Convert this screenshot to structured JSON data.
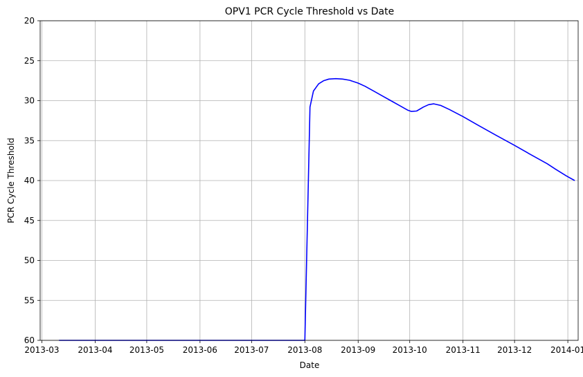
{
  "chart_data": {
    "type": "line",
    "title": "OPV1 PCR Cycle Threshold vs Date",
    "xlabel": "Date",
    "ylabel": "PCR Cycle Threshold",
    "y_inverted": true,
    "ylim": [
      60,
      20
    ],
    "xlim": [
      "2013-02-28",
      "2014-01-07"
    ],
    "grid": true,
    "x_ticks": [
      "2013-03-01",
      "2013-04-01",
      "2013-05-01",
      "2013-06-01",
      "2013-07-01",
      "2013-08-01",
      "2013-09-01",
      "2013-10-01",
      "2013-11-01",
      "2013-12-01",
      "2014-01-01"
    ],
    "x_tick_labels": [
      "2013-03",
      "2013-04",
      "2013-05",
      "2013-06",
      "2013-07",
      "2013-08",
      "2013-09",
      "2013-10",
      "2013-11",
      "2013-12",
      "2014-01"
    ],
    "y_ticks": [
      20,
      25,
      30,
      35,
      40,
      45,
      50,
      55,
      60
    ],
    "colors": {
      "line": "#0000ff",
      "grid": "#b0b0b0"
    },
    "series": [
      {
        "points": [
          [
            "2013-03-11",
            60
          ],
          [
            "2013-08-01",
            60
          ],
          [
            "2013-08-04",
            30.8
          ],
          [
            "2013-08-06",
            28.8
          ],
          [
            "2013-08-09",
            27.9
          ],
          [
            "2013-08-12",
            27.5
          ],
          [
            "2013-08-15",
            27.3
          ],
          [
            "2013-08-19",
            27.25
          ],
          [
            "2013-08-23",
            27.3
          ],
          [
            "2013-08-27",
            27.45
          ],
          [
            "2013-09-01",
            27.8
          ],
          [
            "2013-09-05",
            28.2
          ],
          [
            "2013-09-10",
            28.8
          ],
          [
            "2013-09-15",
            29.4
          ],
          [
            "2013-09-20",
            30.0
          ],
          [
            "2013-09-25",
            30.6
          ],
          [
            "2013-09-30",
            31.2
          ],
          [
            "2013-10-02",
            31.35
          ],
          [
            "2013-10-05",
            31.3
          ],
          [
            "2013-10-09",
            30.8
          ],
          [
            "2013-10-12",
            30.5
          ],
          [
            "2013-10-15",
            30.4
          ],
          [
            "2013-10-19",
            30.6
          ],
          [
            "2013-10-24",
            31.1
          ],
          [
            "2013-11-01",
            32.0
          ],
          [
            "2013-11-10",
            33.1
          ],
          [
            "2013-11-20",
            34.3
          ],
          [
            "2013-12-01",
            35.6
          ],
          [
            "2013-12-10",
            36.7
          ],
          [
            "2013-12-20",
            37.9
          ],
          [
            "2013-12-25",
            38.6
          ],
          [
            "2013-12-31",
            39.4
          ],
          [
            "2014-01-05",
            40.0
          ]
        ]
      }
    ]
  }
}
